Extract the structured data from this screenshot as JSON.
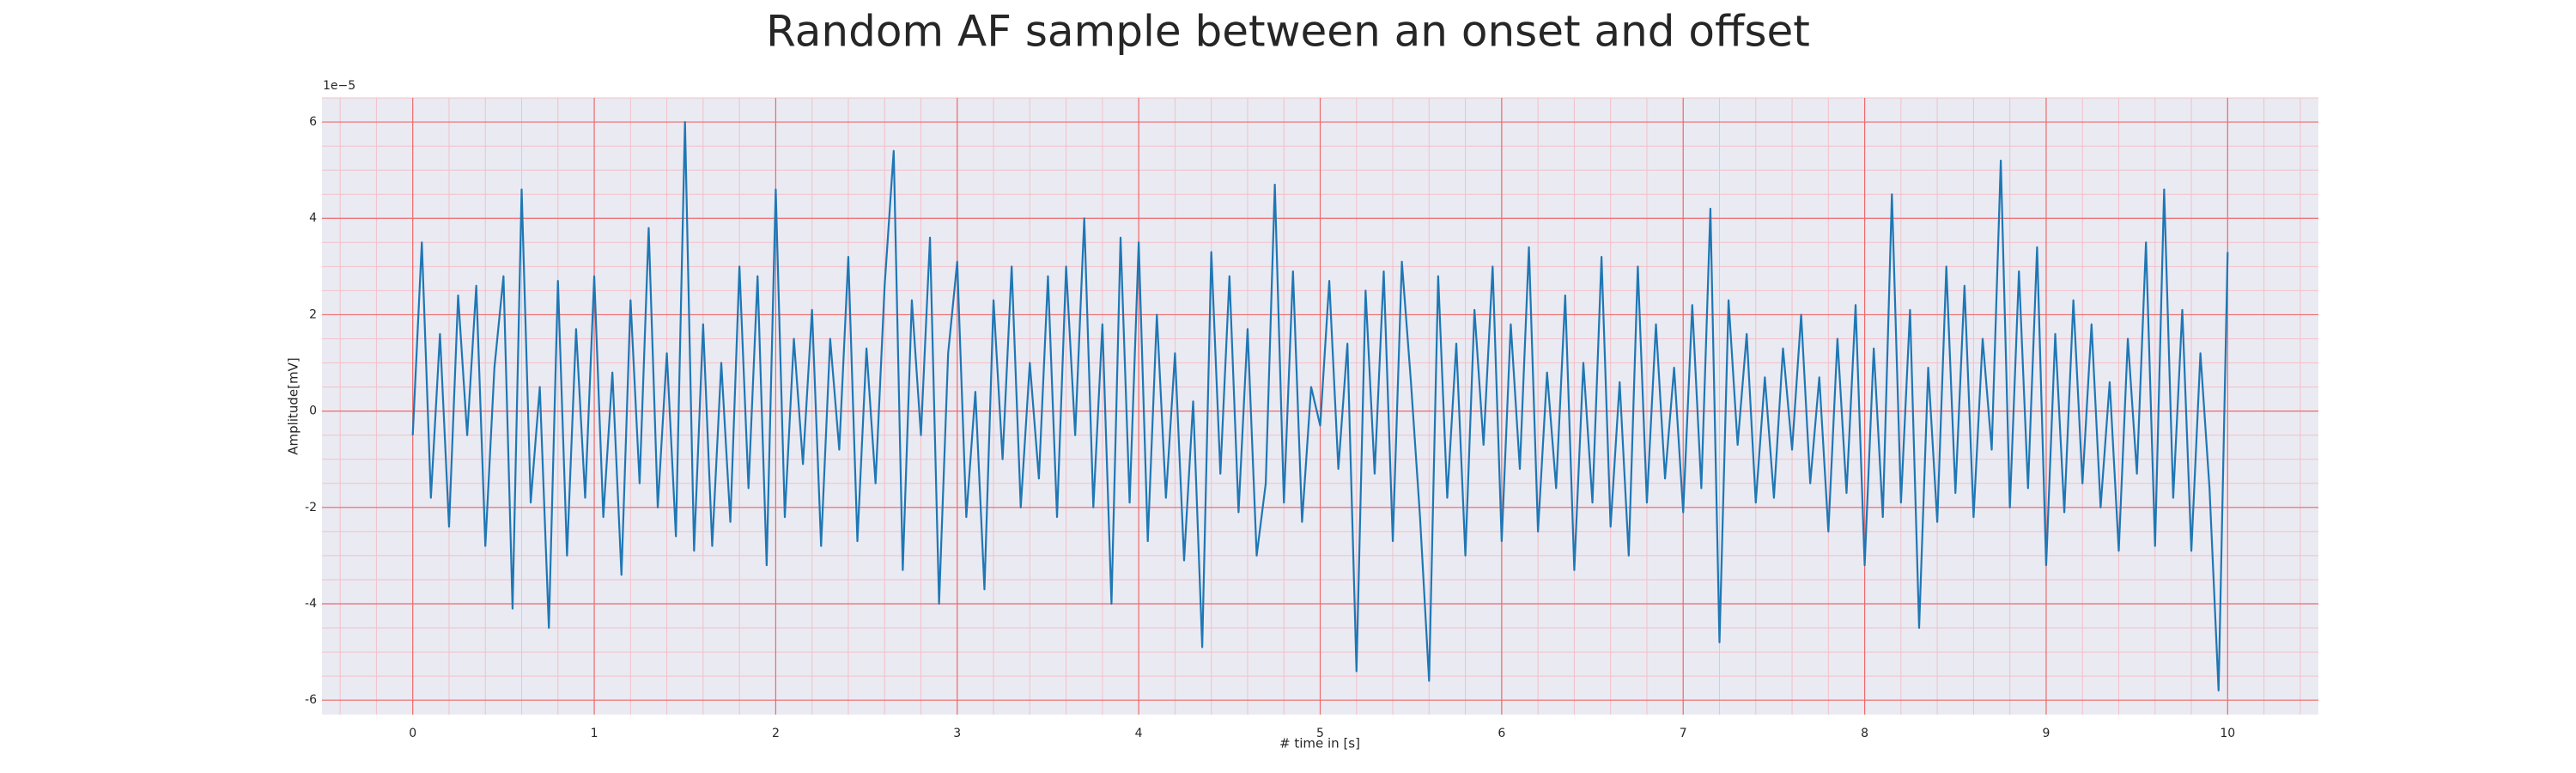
{
  "chart_data": {
    "type": "line",
    "title": "Random AF sample between an onset and offset",
    "x_label": "# time in [s]",
    "y_label": "Amplitude[mV]",
    "y_offset_label": "1e−5",
    "color": "#1f77b4",
    "grid": true,
    "grid_color": "#ee6b6b",
    "minor_grid_color": "#f3c0c8",
    "minor_divisions": {
      "x": 5,
      "y": 4
    },
    "background": "#eaeaf2",
    "xlim": [
      -0.5,
      10.5
    ],
    "ylim": [
      -6.3,
      6.5
    ],
    "xticks": [
      0,
      1,
      2,
      3,
      4,
      5,
      6,
      7,
      8,
      9,
      10
    ],
    "yticks": [
      -6,
      -4,
      -2,
      0,
      2,
      4,
      6
    ],
    "x": [
      0,
      0.05,
      0.1,
      0.15,
      0.2,
      0.25,
      0.3,
      0.35,
      0.4,
      0.45,
      0.5,
      0.55,
      0.6,
      0.65,
      0.7,
      0.75,
      0.8,
      0.85,
      0.9,
      0.95,
      1,
      1.05,
      1.1,
      1.15,
      1.2,
      1.25,
      1.3,
      1.35,
      1.4,
      1.45,
      1.5,
      1.55,
      1.6,
      1.65,
      1.7,
      1.75,
      1.8,
      1.85,
      1.9,
      1.95,
      2,
      2.05,
      2.1,
      2.15,
      2.2,
      2.25,
      2.3,
      2.35,
      2.4,
      2.45,
      2.5,
      2.55,
      2.6,
      2.65,
      2.7,
      2.75,
      2.8,
      2.85,
      2.9,
      2.95,
      3,
      3.05,
      3.1,
      3.15,
      3.2,
      3.25,
      3.3,
      3.35,
      3.4,
      3.45,
      3.5,
      3.55,
      3.6,
      3.65,
      3.7,
      3.75,
      3.8,
      3.85,
      3.9,
      3.95,
      4,
      4.05,
      4.1,
      4.15,
      4.2,
      4.25,
      4.3,
      4.35,
      4.4,
      4.45,
      4.5,
      4.55,
      4.6,
      4.65,
      4.7,
      4.75,
      4.8,
      4.85,
      4.9,
      4.95,
      5,
      5.05,
      5.1,
      5.15,
      5.2,
      5.25,
      5.3,
      5.35,
      5.4,
      5.45,
      5.5,
      5.55,
      5.6,
      5.65,
      5.7,
      5.75,
      5.8,
      5.85,
      5.9,
      5.95,
      6,
      6.05,
      6.1,
      6.15,
      6.2,
      6.25,
      6.3,
      6.35,
      6.4,
      6.45,
      6.5,
      6.55,
      6.6,
      6.65,
      6.7,
      6.75,
      6.8,
      6.85,
      6.9,
      6.95,
      7,
      7.05,
      7.1,
      7.15,
      7.2,
      7.25,
      7.3,
      7.35,
      7.4,
      7.45,
      7.5,
      7.55,
      7.6,
      7.65,
      7.7,
      7.75,
      7.8,
      7.85,
      7.9,
      7.95,
      8,
      8.05,
      8.1,
      8.15,
      8.2,
      8.25,
      8.3,
      8.35,
      8.4,
      8.45,
      8.5,
      8.55,
      8.6,
      8.65,
      8.7,
      8.75,
      8.8,
      8.85,
      8.9,
      8.95,
      9,
      9.05,
      9.1,
      9.15,
      9.2,
      9.25,
      9.3,
      9.35,
      9.4,
      9.45,
      9.5,
      9.55,
      9.6,
      9.65,
      9.7,
      9.75,
      9.8,
      9.85,
      9.9,
      9.95,
      10
    ],
    "values": [
      -0.5,
      3.5,
      -1.8,
      1.6,
      -2.4,
      2.4,
      -0.5,
      2.6,
      -2.8,
      0.9,
      2.8,
      -4.1,
      4.6,
      -1.9,
      0.5,
      -4.5,
      2.7,
      -3.0,
      1.7,
      -1.8,
      2.8,
      -2.2,
      0.8,
      -3.4,
      2.3,
      -1.5,
      3.8,
      -2.0,
      1.2,
      -2.6,
      6.0,
      -2.9,
      1.8,
      -2.8,
      1.0,
      -2.3,
      3.0,
      -1.6,
      2.8,
      -3.2,
      4.6,
      -2.2,
      1.5,
      -1.1,
      2.1,
      -2.8,
      1.5,
      -0.8,
      3.2,
      -2.7,
      1.3,
      -1.5,
      2.6,
      5.4,
      -3.3,
      2.3,
      -0.5,
      3.6,
      -4.0,
      1.2,
      3.1,
      -2.2,
      0.4,
      -3.7,
      2.3,
      -1.0,
      3.0,
      -2.0,
      1.0,
      -1.4,
      2.8,
      -2.2,
      3.0,
      -0.5,
      4.0,
      -2.0,
      1.8,
      -4.0,
      3.6,
      -1.9,
      3.5,
      -2.7,
      2.0,
      -1.8,
      1.2,
      -3.1,
      0.2,
      -4.9,
      3.3,
      -1.3,
      2.8,
      -2.1,
      1.7,
      -3.0,
      -1.5,
      4.7,
      -1.9,
      2.9,
      -2.3,
      0.5,
      -0.3,
      2.7,
      -1.2,
      1.4,
      -5.4,
      2.5,
      -1.3,
      2.9,
      -2.7,
      3.1,
      0.6,
      -2.2,
      -5.6,
      2.8,
      -1.8,
      1.4,
      -3.0,
      2.1,
      -0.7,
      3.0,
      -2.7,
      1.8,
      -1.2,
      3.4,
      -2.5,
      0.8,
      -1.6,
      2.4,
      -3.3,
      1.0,
      -1.9,
      3.2,
      -2.4,
      0.6,
      -3.0,
      3.0,
      -1.9,
      1.8,
      -1.4,
      0.9,
      -2.1,
      2.2,
      -1.6,
      4.2,
      -4.8,
      2.3,
      -0.7,
      1.6,
      -1.9,
      0.7,
      -1.8,
      1.3,
      -0.8,
      2.0,
      -1.5,
      0.7,
      -2.5,
      1.5,
      -1.7,
      2.2,
      -3.2,
      1.3,
      -2.2,
      4.5,
      -1.9,
      2.1,
      -4.5,
      0.9,
      -2.3,
      3.0,
      -1.7,
      2.6,
      -2.2,
      1.5,
      -0.8,
      5.2,
      -2.0,
      2.9,
      -1.6,
      3.4,
      -3.2,
      1.6,
      -2.1,
      2.3,
      -1.5,
      1.8,
      -2.0,
      0.6,
      -2.9,
      1.5,
      -1.3,
      3.5,
      -2.8,
      4.6,
      -1.8,
      2.1,
      -2.9,
      1.2,
      -1.6,
      -5.8,
      3.3
    ]
  }
}
